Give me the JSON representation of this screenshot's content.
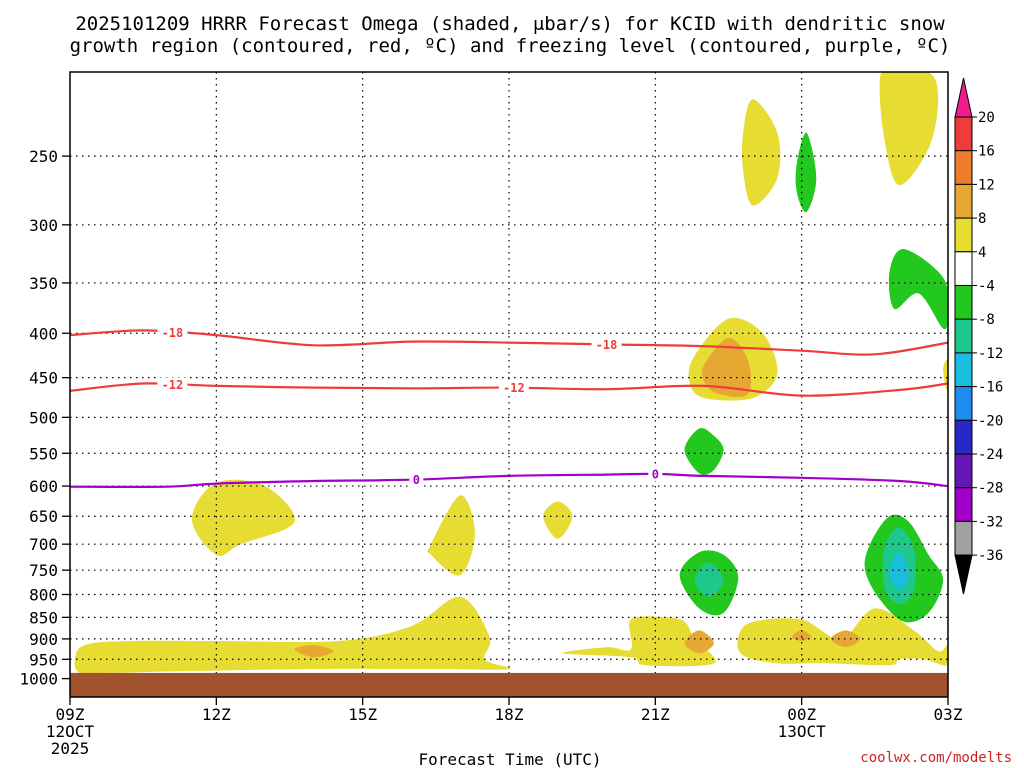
{
  "chart_data": {
    "type": "heatmap",
    "title_lines": [
      "2025101209 HRRR Forecast Omega (shaded, μbar/s) for KCID with dendritic snow",
      "growth region (contoured, red, ºC) and freezing level (contoured, purple, ºC)"
    ],
    "xlabel": "Forecast Time (UTC)",
    "credit": "coolwx.com/modelts",
    "x_range_hours": [
      0,
      18
    ],
    "x_ticks": [
      {
        "h": 0,
        "label": "09Z",
        "sub": [
          "12OCT",
          "2025"
        ]
      },
      {
        "h": 3,
        "label": "12Z",
        "sub": []
      },
      {
        "h": 6,
        "label": "15Z",
        "sub": []
      },
      {
        "h": 9,
        "label": "18Z",
        "sub": []
      },
      {
        "h": 12,
        "label": "21Z",
        "sub": []
      },
      {
        "h": 15,
        "label": "00Z",
        "sub": [
          "13OCT"
        ]
      },
      {
        "h": 18,
        "label": "03Z",
        "sub": []
      }
    ],
    "y_range_hpa": [
      200,
      1050
    ],
    "y_ticks": [
      250,
      300,
      350,
      400,
      450,
      500,
      550,
      600,
      650,
      700,
      750,
      800,
      850,
      900,
      950,
      1000
    ],
    "ground_top_hpa": 985,
    "colorbar": {
      "labels": [
        "20",
        "16",
        "12",
        "8",
        "4",
        "-4",
        "-8",
        "-12",
        "-16",
        "-20",
        "-24",
        "-28",
        "-32",
        "-36"
      ],
      "colors": [
        "#ee1c8c",
        "#ee3c3c",
        "#ef7c2c",
        "#e6a832",
        "#e6dc32",
        "#ffffff",
        "#22c81e",
        "#1ec88c",
        "#19bede",
        "#1e8cf0",
        "#2828c8",
        "#6416b4",
        "#a000c8",
        "#a0a0a0",
        "#000000"
      ]
    },
    "shaded_regions": [
      {
        "value": 6,
        "color": "#e6dc32",
        "pts": [
          [
            0.2,
            985
          ],
          [
            0.1,
            950
          ],
          [
            0.3,
            915
          ],
          [
            1.2,
            905
          ],
          [
            3.0,
            905
          ],
          [
            5.5,
            905
          ],
          [
            7.0,
            870
          ],
          [
            8.0,
            805
          ],
          [
            8.6,
            895
          ],
          [
            8.5,
            950
          ],
          [
            9.0,
            975
          ],
          [
            7.5,
            975
          ],
          [
            5.0,
            975
          ],
          [
            2.5,
            980
          ],
          [
            0.8,
            985
          ]
        ]
      },
      {
        "value": 6,
        "color": "#e6dc32",
        "pts": [
          [
            2.5,
            655
          ],
          [
            3.0,
            595
          ],
          [
            4.0,
            600
          ],
          [
            4.6,
            660
          ],
          [
            3.5,
            700
          ],
          [
            3.0,
            720
          ]
        ]
      },
      {
        "value": 6,
        "color": "#e6dc32",
        "pts": [
          [
            7.4,
            700
          ],
          [
            8.0,
            615
          ],
          [
            8.3,
            680
          ],
          [
            8.0,
            760
          ],
          [
            7.4,
            720
          ]
        ]
      },
      {
        "value": 6,
        "color": "#e6dc32",
        "pts": [
          [
            9.7,
            650
          ],
          [
            10.0,
            625
          ],
          [
            10.3,
            650
          ],
          [
            10.0,
            690
          ]
        ]
      },
      {
        "value": 6,
        "color": "#e6dc32",
        "pts": [
          [
            10.1,
            935
          ],
          [
            11.0,
            920
          ],
          [
            11.5,
            925
          ],
          [
            11.5,
            855
          ],
          [
            12.2,
            850
          ],
          [
            12.6,
            860
          ],
          [
            12.8,
            900
          ],
          [
            13.2,
            960
          ],
          [
            11.8,
            965
          ],
          [
            11.5,
            945
          ]
        ]
      },
      {
        "value": 6,
        "color": "#e6dc32",
        "pts": [
          [
            13.8,
            235
          ],
          [
            14.0,
            215
          ],
          [
            14.5,
            235
          ],
          [
            14.5,
            265
          ],
          [
            14.0,
            285
          ],
          [
            13.8,
            260
          ]
        ]
      },
      {
        "value": 6,
        "color": "#e6dc32",
        "pts": [
          [
            12.8,
            425
          ],
          [
            13.5,
            385
          ],
          [
            14.2,
            400
          ],
          [
            14.5,
            445
          ],
          [
            14.0,
            475
          ],
          [
            13.0,
            475
          ],
          [
            12.7,
            455
          ]
        ]
      },
      {
        "value": 6,
        "color": "#e6dc32",
        "pts": [
          [
            13.7,
            895
          ],
          [
            14.0,
            860
          ],
          [
            15.0,
            855
          ],
          [
            15.8,
            900
          ],
          [
            16.5,
            830
          ],
          [
            17.3,
            880
          ],
          [
            17.8,
            930
          ],
          [
            18.0,
            915
          ],
          [
            18.0,
            965
          ],
          [
            17.5,
            950
          ],
          [
            17.0,
            950
          ],
          [
            16.8,
            965
          ],
          [
            15.5,
            960
          ],
          [
            14.5,
            960
          ],
          [
            13.8,
            940
          ]
        ]
      },
      {
        "value": 6,
        "color": "#e6dc32",
        "pts": [
          [
            16.6,
            205
          ],
          [
            16.8,
            200
          ],
          [
            17.6,
            200
          ],
          [
            17.8,
            215
          ],
          [
            17.6,
            245
          ],
          [
            17.0,
            270
          ],
          [
            16.7,
            240
          ]
        ]
      },
      {
        "value": 6,
        "color": "#e6dc32",
        "pts": [
          [
            17.9,
            440
          ],
          [
            18.0,
            430
          ],
          [
            18.1,
            455
          ],
          [
            18.0,
            470
          ]
        ]
      },
      {
        "value": 10,
        "color": "#e6a832",
        "pts": [
          [
            13.0,
            435
          ],
          [
            13.5,
            405
          ],
          [
            13.9,
            430
          ],
          [
            13.9,
            470
          ],
          [
            13.3,
            470
          ],
          [
            13.0,
            455
          ]
        ]
      },
      {
        "value": 10,
        "color": "#e6a832",
        "pts": [
          [
            4.6,
            925
          ],
          [
            5.0,
            915
          ],
          [
            5.4,
            930
          ],
          [
            5.0,
            945
          ]
        ]
      },
      {
        "value": 10,
        "color": "#e6a832",
        "pts": [
          [
            12.6,
            910
          ],
          [
            12.9,
            880
          ],
          [
            13.2,
            910
          ],
          [
            12.9,
            935
          ]
        ]
      },
      {
        "value": 10,
        "color": "#e6a832",
        "pts": [
          [
            14.8,
            895
          ],
          [
            15.0,
            880
          ],
          [
            15.2,
            895
          ],
          [
            15.0,
            905
          ]
        ]
      },
      {
        "value": 10,
        "color": "#e6a832",
        "pts": [
          [
            15.6,
            900
          ],
          [
            15.9,
            880
          ],
          [
            16.2,
            900
          ],
          [
            15.9,
            920
          ]
        ]
      },
      {
        "value": -6,
        "color": "#22c81e",
        "pts": [
          [
            14.9,
            255
          ],
          [
            15.1,
            235
          ],
          [
            15.3,
            265
          ],
          [
            15.1,
            290
          ],
          [
            14.9,
            275
          ]
        ]
      },
      {
        "value": -6,
        "color": "#22c81e",
        "pts": [
          [
            16.8,
            340
          ],
          [
            17.1,
            320
          ],
          [
            17.9,
            345
          ],
          [
            18.0,
            380
          ],
          [
            17.9,
            395
          ],
          [
            17.4,
            360
          ],
          [
            16.9,
            375
          ]
        ]
      },
      {
        "value": -6,
        "color": "#22c81e",
        "pts": [
          [
            12.6,
            545
          ],
          [
            12.9,
            515
          ],
          [
            13.2,
            525
          ],
          [
            13.4,
            545
          ],
          [
            13.2,
            575
          ],
          [
            12.9,
            580
          ]
        ]
      },
      {
        "value": -6,
        "color": "#22c81e",
        "pts": [
          [
            12.5,
            760
          ],
          [
            12.9,
            715
          ],
          [
            13.4,
            720
          ],
          [
            13.7,
            765
          ],
          [
            13.4,
            840
          ],
          [
            12.9,
            830
          ]
        ]
      },
      {
        "value": -6,
        "color": "#22c81e",
        "pts": [
          [
            16.4,
            700
          ],
          [
            16.8,
            650
          ],
          [
            17.2,
            660
          ],
          [
            17.6,
            720
          ],
          [
            17.9,
            770
          ],
          [
            17.6,
            840
          ],
          [
            17.1,
            860
          ],
          [
            16.6,
            810
          ],
          [
            16.3,
            750
          ]
        ]
      },
      {
        "value": -10,
        "color": "#1ec88c",
        "pts": [
          [
            12.8,
            770
          ],
          [
            13.1,
            735
          ],
          [
            13.4,
            770
          ],
          [
            13.1,
            805
          ]
        ]
      },
      {
        "value": -10,
        "color": "#1ec88c",
        "pts": [
          [
            16.7,
            705
          ],
          [
            17.0,
            670
          ],
          [
            17.3,
            710
          ],
          [
            17.3,
            790
          ],
          [
            17.0,
            820
          ],
          [
            16.7,
            785
          ]
        ]
      },
      {
        "value": -14,
        "color": "#19bede",
        "pts": [
          [
            16.8,
            755
          ],
          [
            17.0,
            715
          ],
          [
            17.2,
            760
          ],
          [
            17.0,
            790
          ]
        ]
      }
    ],
    "contours": [
      {
        "value": -18,
        "label": "-18",
        "color": "#ee3c3c",
        "pts": [
          [
            0,
            402
          ],
          [
            1.5,
            397
          ],
          [
            3,
            402
          ],
          [
            5,
            413
          ],
          [
            7,
            409
          ],
          [
            9,
            410
          ],
          [
            11,
            412
          ],
          [
            13,
            414
          ],
          [
            15,
            419
          ],
          [
            16.5,
            423
          ],
          [
            18,
            410
          ]
        ],
        "label_h": [
          2.1,
          11.0
        ]
      },
      {
        "value": -12,
        "label": "-12",
        "color": "#ee3c3c",
        "pts": [
          [
            0,
            466
          ],
          [
            1.5,
            457
          ],
          [
            3,
            460
          ],
          [
            5,
            462
          ],
          [
            7,
            463
          ],
          [
            9,
            462
          ],
          [
            11,
            464
          ],
          [
            13,
            460
          ],
          [
            15,
            472
          ],
          [
            17,
            465
          ],
          [
            18,
            457
          ]
        ],
        "label_h": [
          2.1,
          9.1
        ]
      },
      {
        "value": 0,
        "label": "0",
        "color": "#a000c8",
        "pts": [
          [
            0,
            601
          ],
          [
            2,
            601
          ],
          [
            3,
            596
          ],
          [
            5,
            592
          ],
          [
            7,
            590
          ],
          [
            9,
            584
          ],
          [
            11,
            582
          ],
          [
            12,
            581
          ],
          [
            13,
            584
          ],
          [
            15,
            587
          ],
          [
            17,
            592
          ],
          [
            18,
            600
          ]
        ],
        "label_h": [
          7.1,
          12.0
        ]
      }
    ]
  }
}
